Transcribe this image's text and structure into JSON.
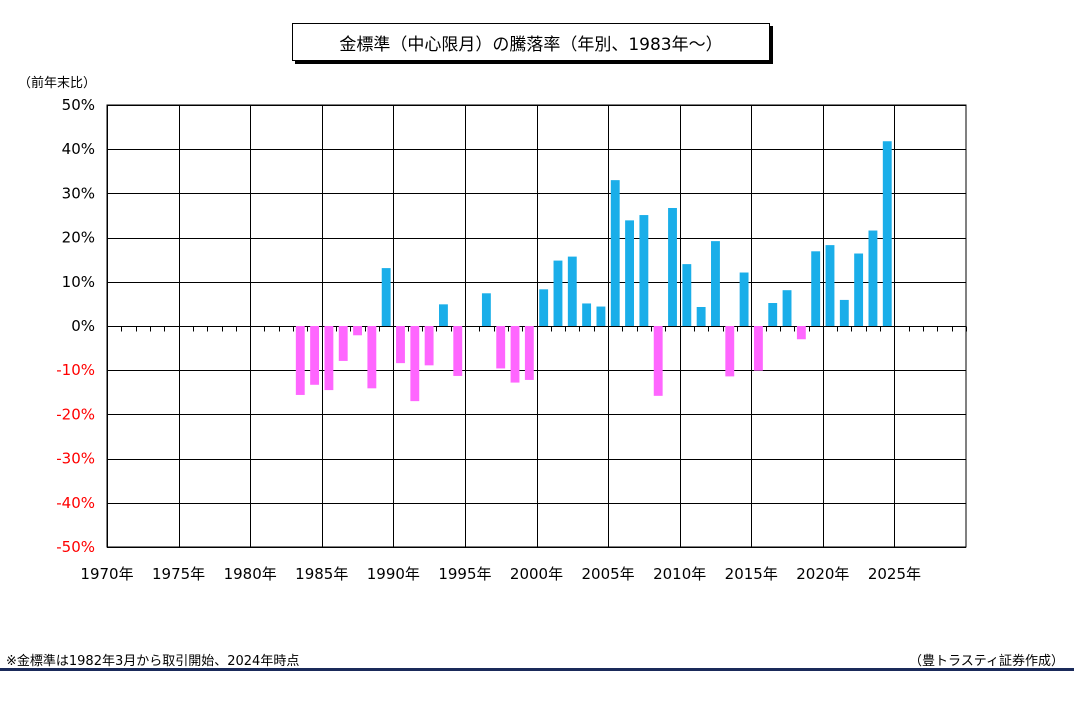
{
  "chart_data": {
    "type": "bar",
    "title": "金標準（中心限月）の騰落率（年別、1983年〜）",
    "ylabel": "（前年末比）",
    "ylim": [
      -50,
      50
    ],
    "yticks": [
      50,
      40,
      30,
      20,
      10,
      0,
      -10,
      -20,
      -30,
      -40,
      -50
    ],
    "ytick_labels": [
      "50%",
      "40%",
      "30%",
      "20%",
      "10%",
      "0%",
      "-10%",
      "-20%",
      "-30%",
      "-40%",
      "-50%"
    ],
    "xlim": [
      1970,
      2030
    ],
    "xticks": [
      1970,
      1975,
      1980,
      1985,
      1990,
      1995,
      2000,
      2005,
      2010,
      2015,
      2020,
      2025
    ],
    "xtick_labels": [
      "1970年",
      "1975年",
      "1980年",
      "1985年",
      "1990年",
      "1995年",
      "2000年",
      "2005年",
      "2010年",
      "2015年",
      "2020年",
      "2025年"
    ],
    "grid": true,
    "colors": {
      "positive": "#1aaee9",
      "negative": "#ff66ff",
      "positive_tick": "#000000",
      "negative_tick": "#ff0000"
    },
    "series": [
      {
        "x": [
          1983,
          1984,
          1985,
          1986,
          1987,
          1988,
          1989,
          1990,
          1991,
          1992,
          1993,
          1994,
          1995,
          1996,
          1997,
          1998,
          1999,
          2000,
          2001,
          2002,
          2003,
          2004,
          2005,
          2006,
          2007,
          2008,
          2009,
          2010,
          2011,
          2012,
          2013,
          2014,
          2015,
          2016,
          2017,
          2018,
          2019,
          2020,
          2021,
          2022,
          2023,
          2024
        ],
        "values": [
          -15.6,
          -13.3,
          -14.5,
          -7.9,
          -2.1,
          -14.1,
          13.1,
          -8.4,
          -17.0,
          -8.9,
          4.9,
          -11.3,
          0,
          7.4,
          -9.6,
          -12.8,
          -12.2,
          8.3,
          14.8,
          15.7,
          5.1,
          4.4,
          33.0,
          23.9,
          25.1,
          -15.8,
          26.7,
          14.0,
          4.3,
          19.2,
          -11.4,
          12.1,
          -10.1,
          5.2,
          8.1,
          -3.0,
          16.9,
          18.3,
          5.9,
          16.4,
          21.6,
          41.8
        ]
      }
    ]
  },
  "footnote": "※金標準は1982年3月から取引開始、2024年時点",
  "credit": "（豊トラスティ証券作成）"
}
